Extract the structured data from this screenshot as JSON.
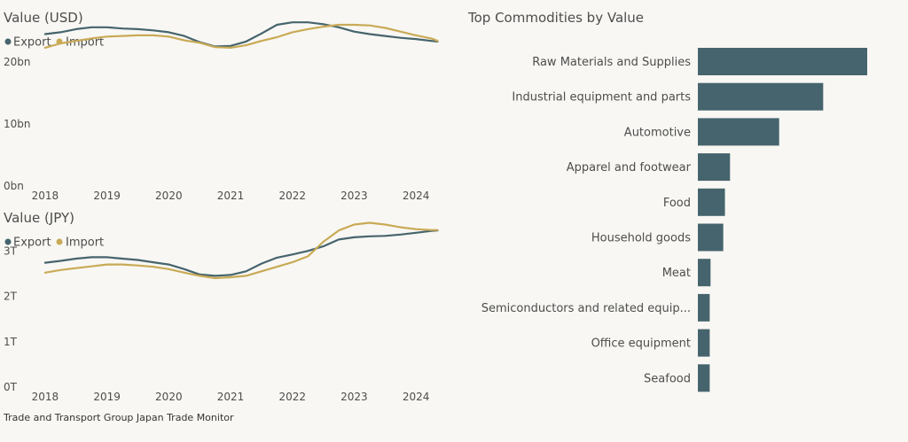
{
  "colors": {
    "export": "#46646d",
    "import": "#c9aa56",
    "bar": "#46646d",
    "text": "#4d4d4d",
    "muted": "#888888"
  },
  "footer": {
    "text": "Trade and Transport Group Japan Trade Monitor"
  },
  "chart_data": [
    {
      "type": "line",
      "title": "Value (USD)",
      "x_ticks": [
        "2018",
        "2019",
        "2020",
        "2021",
        "2022",
        "2023",
        "2024"
      ],
      "x_range": [
        2017.8,
        2024.4
      ],
      "y_ticks": [
        "0bn",
        "10bn",
        "20bn"
      ],
      "y_tick_values": [
        0,
        10,
        20
      ],
      "ylim": [
        0,
        30
      ],
      "legend": {
        "placement": "top-left",
        "entries": [
          "Export",
          "Import"
        ]
      },
      "series": [
        {
          "name": "Export",
          "points": [
            [
              2018.0,
              24.5
            ],
            [
              2018.25,
              24.8
            ],
            [
              2018.5,
              25.3
            ],
            [
              2018.75,
              25.6
            ],
            [
              2019.0,
              25.6
            ],
            [
              2019.25,
              25.4
            ],
            [
              2019.5,
              25.3
            ],
            [
              2019.75,
              25.1
            ],
            [
              2020.0,
              24.8
            ],
            [
              2020.25,
              24.2
            ],
            [
              2020.5,
              23.2
            ],
            [
              2020.75,
              22.5
            ],
            [
              2021.0,
              22.6
            ],
            [
              2021.25,
              23.3
            ],
            [
              2021.5,
              24.6
            ],
            [
              2021.75,
              26.0
            ],
            [
              2022.0,
              26.4
            ],
            [
              2022.25,
              26.4
            ],
            [
              2022.5,
              26.1
            ],
            [
              2022.75,
              25.6
            ],
            [
              2023.0,
              24.9
            ],
            [
              2023.25,
              24.5
            ],
            [
              2023.5,
              24.2
            ],
            [
              2023.75,
              23.9
            ],
            [
              2024.0,
              23.7
            ],
            [
              2024.25,
              23.4
            ],
            [
              2024.35,
              23.3
            ]
          ]
        },
        {
          "name": "Import",
          "points": [
            [
              2018.0,
              22.3
            ],
            [
              2018.25,
              23.0
            ],
            [
              2018.5,
              23.4
            ],
            [
              2018.75,
              23.8
            ],
            [
              2019.0,
              24.1
            ],
            [
              2019.25,
              24.2
            ],
            [
              2019.5,
              24.3
            ],
            [
              2019.75,
              24.3
            ],
            [
              2020.0,
              24.1
            ],
            [
              2020.25,
              23.5
            ],
            [
              2020.5,
              23.1
            ],
            [
              2020.75,
              22.4
            ],
            [
              2021.0,
              22.3
            ],
            [
              2021.25,
              22.7
            ],
            [
              2021.5,
              23.4
            ],
            [
              2021.75,
              24.0
            ],
            [
              2022.0,
              24.8
            ],
            [
              2022.25,
              25.3
            ],
            [
              2022.5,
              25.7
            ],
            [
              2022.75,
              26.0
            ],
            [
              2023.0,
              26.0
            ],
            [
              2023.25,
              25.9
            ],
            [
              2023.5,
              25.5
            ],
            [
              2023.75,
              24.9
            ],
            [
              2024.0,
              24.3
            ],
            [
              2024.25,
              23.8
            ],
            [
              2024.35,
              23.4
            ]
          ]
        }
      ]
    },
    {
      "type": "line",
      "title": "Value (JPY)",
      "x_ticks": [
        "2018",
        "2019",
        "2020",
        "2021",
        "2022",
        "2023",
        "2024"
      ],
      "x_range": [
        2017.8,
        2024.4
      ],
      "y_ticks": [
        "0T",
        "1T",
        "2T",
        "3T"
      ],
      "y_tick_values": [
        0,
        1,
        2,
        3
      ],
      "ylim": [
        0,
        4
      ],
      "legend": {
        "placement": "top-left",
        "entries": [
          "Export",
          "Import"
        ]
      },
      "series": [
        {
          "name": "Export",
          "points": [
            [
              2018.0,
              2.74
            ],
            [
              2018.25,
              2.78
            ],
            [
              2018.5,
              2.83
            ],
            [
              2018.75,
              2.86
            ],
            [
              2019.0,
              2.86
            ],
            [
              2019.25,
              2.83
            ],
            [
              2019.5,
              2.8
            ],
            [
              2019.75,
              2.75
            ],
            [
              2020.0,
              2.7
            ],
            [
              2020.25,
              2.6
            ],
            [
              2020.5,
              2.48
            ],
            [
              2020.75,
              2.45
            ],
            [
              2021.0,
              2.47
            ],
            [
              2021.25,
              2.55
            ],
            [
              2021.5,
              2.72
            ],
            [
              2021.75,
              2.85
            ],
            [
              2022.0,
              2.92
            ],
            [
              2022.25,
              3.0
            ],
            [
              2022.5,
              3.1
            ],
            [
              2022.75,
              3.25
            ],
            [
              2023.0,
              3.3
            ],
            [
              2023.25,
              3.32
            ],
            [
              2023.5,
              3.33
            ],
            [
              2023.75,
              3.36
            ],
            [
              2024.0,
              3.4
            ],
            [
              2024.25,
              3.44
            ],
            [
              2024.35,
              3.45
            ]
          ]
        },
        {
          "name": "Import",
          "points": [
            [
              2018.0,
              2.52
            ],
            [
              2018.25,
              2.58
            ],
            [
              2018.5,
              2.62
            ],
            [
              2018.75,
              2.66
            ],
            [
              2019.0,
              2.7
            ],
            [
              2019.25,
              2.7
            ],
            [
              2019.5,
              2.68
            ],
            [
              2019.75,
              2.65
            ],
            [
              2020.0,
              2.6
            ],
            [
              2020.25,
              2.52
            ],
            [
              2020.5,
              2.45
            ],
            [
              2020.75,
              2.4
            ],
            [
              2021.0,
              2.42
            ],
            [
              2021.25,
              2.45
            ],
            [
              2021.5,
              2.55
            ],
            [
              2021.75,
              2.65
            ],
            [
              2022.0,
              2.75
            ],
            [
              2022.25,
              2.88
            ],
            [
              2022.5,
              3.2
            ],
            [
              2022.75,
              3.45
            ],
            [
              2023.0,
              3.58
            ],
            [
              2023.25,
              3.62
            ],
            [
              2023.5,
              3.58
            ],
            [
              2023.75,
              3.52
            ],
            [
              2024.0,
              3.48
            ],
            [
              2024.25,
              3.46
            ],
            [
              2024.35,
              3.46
            ]
          ]
        }
      ]
    },
    {
      "type": "bar",
      "orientation": "horizontal",
      "title": "Top Commodities by Value",
      "categories": [
        "Raw Materials and Supplies",
        "Industrial equipment and parts",
        "Automotive",
        "Apparel and footwear",
        "Food",
        "Household goods",
        "Meat",
        "Semiconductors and related equip...",
        "Office equipment",
        "Seafood"
      ],
      "values": [
        100,
        74,
        48,
        19,
        16,
        15,
        7.5,
        7,
        7,
        7
      ],
      "xlim": [
        0,
        100
      ]
    }
  ]
}
